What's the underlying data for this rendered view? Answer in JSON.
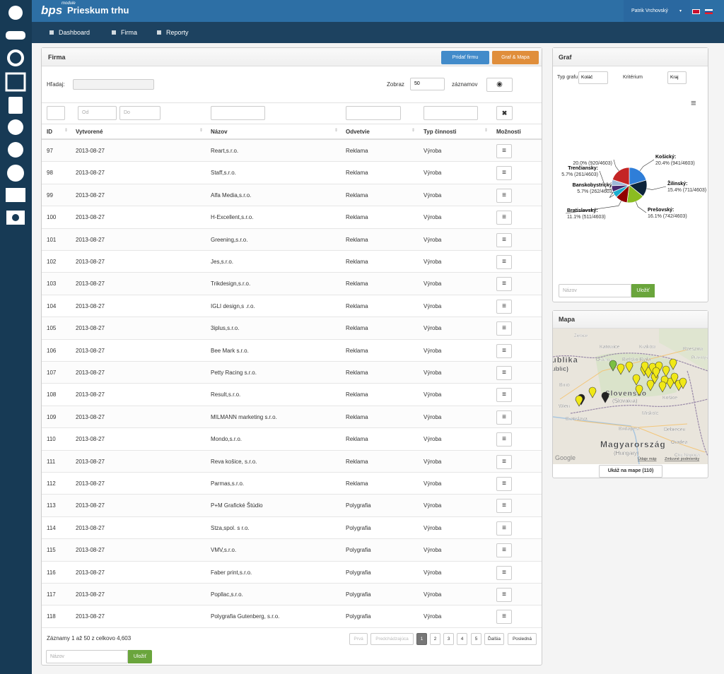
{
  "header": {
    "logo": "bps",
    "logo_sup": "module",
    "title": "Prieskum trhu",
    "user": "Patrik Vrchovský"
  },
  "nav": [
    "Dashboard",
    "Firma",
    "Reporty"
  ],
  "firma": {
    "title": "Firma",
    "buttons": [
      "Pridať firmu",
      "Graf & Mapa"
    ],
    "search_label": "Hľadaj:",
    "show_label": "Zobraz",
    "show_value": "50",
    "show_suffix": "záznamov",
    "filter_placeholders": [
      "Od",
      "Do"
    ],
    "columns": [
      "ID",
      "Vytvorené",
      "Názov",
      "Odvetvie",
      "Typ činnosti",
      "Možnosti"
    ],
    "rows": [
      [
        "97",
        "2013-08-27",
        "Reart,s.r.o.",
        "Reklama",
        "Výroba"
      ],
      [
        "98",
        "2013-08-27",
        "Staff,s.r.o.",
        "Reklama",
        "Výroba"
      ],
      [
        "99",
        "2013-08-27",
        "Alfa Media,s.r.o.",
        "Reklama",
        "Výroba"
      ],
      [
        "100",
        "2013-08-27",
        "H-Excellent,s.r.o.",
        "Reklama",
        "Výroba"
      ],
      [
        "101",
        "2013-08-27",
        "Greening,s.r.o.",
        "Reklama",
        "Výroba"
      ],
      [
        "102",
        "2013-08-27",
        "Jes,s.r.o.",
        "Reklama",
        "Výroba"
      ],
      [
        "103",
        "2013-08-27",
        "Trikdesign,s.r.o.",
        "Reklama",
        "Výroba"
      ],
      [
        "104",
        "2013-08-27",
        "IGLI design,s .r.o.",
        "Reklama",
        "Výroba"
      ],
      [
        "105",
        "2013-08-27",
        "3iplus,s.r.o.",
        "Reklama",
        "Výroba"
      ],
      [
        "106",
        "2013-08-27",
        "Bee Mark s.r.o.",
        "Reklama",
        "Výroba"
      ],
      [
        "107",
        "2013-08-27",
        "Petty Racing s.r.o.",
        "Reklama",
        "Výroba"
      ],
      [
        "108",
        "2013-08-27",
        "Result,s.r.o.",
        "Reklama",
        "Výroba"
      ],
      [
        "109",
        "2013-08-27",
        "MILMANN marketing s.r.o.",
        "Reklama",
        "Výroba"
      ],
      [
        "110",
        "2013-08-27",
        "Mondo,s.r.o.",
        "Reklama",
        "Výroba"
      ],
      [
        "111",
        "2013-08-27",
        "Reva košice, s.r.o.",
        "Reklama",
        "Výroba"
      ],
      [
        "112",
        "2013-08-27",
        "Parmas,s.r.o.",
        "Reklama",
        "Výroba"
      ],
      [
        "113",
        "2013-08-27",
        "P+M Grafické Štúdio",
        "Polygrafia",
        "Výroba"
      ],
      [
        "114",
        "2013-08-27",
        "Stza,spol. s r.o.",
        "Polygrafia",
        "Výroba"
      ],
      [
        "115",
        "2013-08-27",
        "VMV,s.r.o.",
        "Polygrafia",
        "Výroba"
      ],
      [
        "116",
        "2013-08-27",
        "Faber print,s.r.o.",
        "Polygrafia",
        "Výroba"
      ],
      [
        "117",
        "2013-08-27",
        "Popllac,s.r.o.",
        "Polygrafia",
        "Výroba"
      ],
      [
        "118",
        "2013-08-27",
        "Polygrafia Gutenberg, s.r.o.",
        "Polygrafia",
        "Výroba"
      ]
    ],
    "info": "Záznamy 1 až 50 z celkovo 4,603",
    "pagination": [
      "Prvá",
      "Predchádzajúca",
      "1",
      "2",
      "3",
      "4",
      "5",
      "Ďalšia",
      "Posledná"
    ],
    "save_placeholder": "Názov",
    "save_button": "Uložiť"
  },
  "graf": {
    "title": "Graf",
    "type_label": "Typ grafu",
    "type_value": "Koláč",
    "criterion_label": "Kritérium",
    "criterion_value": "Kraj",
    "slices": [
      {
        "name": "Košický:",
        "value": 941,
        "label": "20.4% (941/4603)",
        "color": "#2f7ed8"
      },
      {
        "name": "Žilinský:",
        "value": 711,
        "label": "15.4% (711/4603)",
        "color": "#0d233a"
      },
      {
        "name": "Prešovský:",
        "value": 742,
        "label": "16.1% (742/4603)",
        "color": "#8bbc21"
      },
      {
        "name": "Bratislavský:",
        "value": 511,
        "label": "11.1% (511/4603)",
        "color": "#910000"
      },
      {
        "name": "Banskobystrický:",
        "value": 262,
        "label": "5.7% (262/4603)",
        "color": "#1aadce"
      },
      {
        "name": "Trenčiansky:",
        "value": 261,
        "label": "5.7% (261/4603)",
        "color": "#492970"
      },
      {
        "value": 255,
        "color": "#9fb8d8"
      },
      {
        "value": 920,
        "label": "20.0% (920/4603)",
        "color": "#c42525"
      }
    ],
    "save_placeholder": "Názov",
    "save_button": "Uložiť"
  },
  "mapa": {
    "title": "Mapa",
    "places": [
      "Ziębice",
      "Katowice",
      "Kraków",
      "Rzeszów",
      "Ostrava",
      "Bielsko-Biała",
      "Przemyśl",
      "ublika",
      "ublic)",
      "Brno",
      "Slovensko",
      "(Slovakia)",
      "Košice",
      "Wien",
      "Bratislava",
      "Miskolc",
      "Budapest",
      "Debrecen",
      "Magyarország",
      "(Hungary)",
      "Oradea",
      "Cluj-Napoca"
    ],
    "attribution": [
      "Údaje máp",
      "Zmluvné podmienky"
    ],
    "google": "Google",
    "button": "Ukáž na mape (110)"
  }
}
